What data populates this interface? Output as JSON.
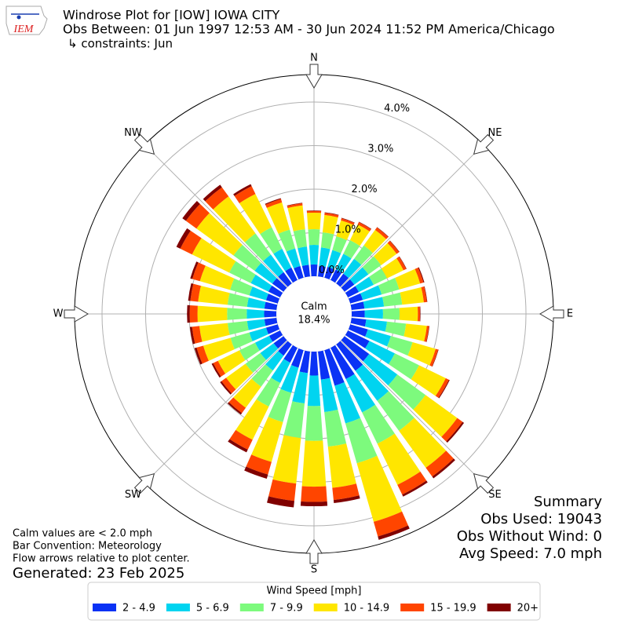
{
  "chart_data": {
    "type": "windrose",
    "title": "Windrose Plot for [IOW] IOWA CITY",
    "subtitle": "Obs Between: 01 Jun 1997 12:53 AM - 30 Jun 2024 11:52 PM America/Chicago",
    "constraints": "↳ constraints: Jun",
    "x": [
      0,
      10,
      20,
      30,
      40,
      50,
      60,
      70,
      80,
      90,
      100,
      110,
      120,
      130,
      140,
      150,
      160,
      170,
      180,
      190,
      200,
      210,
      220,
      230,
      240,
      250,
      260,
      270,
      280,
      290,
      300,
      310,
      320,
      330,
      340,
      350
    ],
    "direction_labels": [
      {
        "value": 0,
        "label": "N"
      },
      {
        "value": 45,
        "label": "NE"
      },
      {
        "value": 90,
        "label": "E"
      },
      {
        "value": 135,
        "label": "SE"
      },
      {
        "value": 180,
        "label": "S"
      },
      {
        "value": 225,
        "label": "SW"
      },
      {
        "value": 270,
        "label": "W"
      },
      {
        "value": 315,
        "label": "NW"
      }
    ],
    "ylim": [
      0,
      4.63
    ],
    "yticks": [
      {
        "value": 0,
        "label": "0.0%"
      },
      {
        "value": 1,
        "label": "1.0%"
      },
      {
        "value": 2,
        "label": "2.0%"
      },
      {
        "value": 3,
        "label": "3.0%"
      },
      {
        "value": 4,
        "label": "4.0%"
      }
    ],
    "grid": true,
    "calm_label": "Calm",
    "calm_value": 18.4,
    "calm_value_label": "18.4%",
    "legend_title": "Wind Speed [mph]",
    "series": [
      {
        "name": "2 - 4.9",
        "color": "#0a32f5",
        "values": [
          0.27,
          0.25,
          0.26,
          0.27,
          0.28,
          0.28,
          0.28,
          0.3,
          0.3,
          0.3,
          0.34,
          0.42,
          0.55,
          0.7,
          0.75,
          0.8,
          0.85,
          0.65,
          0.55,
          0.5,
          0.42,
          0.38,
          0.32,
          0.28,
          0.28,
          0.28,
          0.28,
          0.28,
          0.28,
          0.28,
          0.3,
          0.32,
          0.32,
          0.32,
          0.28,
          0.27
        ]
      },
      {
        "name": "5 - 6.9",
        "color": "#00d4f0",
        "values": [
          0.45,
          0.42,
          0.4,
          0.4,
          0.42,
          0.4,
          0.38,
          0.45,
          0.45,
          0.42,
          0.48,
          0.55,
          0.65,
          0.8,
          0.85,
          0.85,
          0.9,
          0.75,
          0.7,
          0.7,
          0.6,
          0.52,
          0.42,
          0.38,
          0.36,
          0.4,
          0.4,
          0.4,
          0.4,
          0.4,
          0.45,
          0.5,
          0.5,
          0.48,
          0.42,
          0.42
        ]
      },
      {
        "name": "7 - 9.9",
        "color": "#7dfa7d",
        "values": [
          0.36,
          0.35,
          0.33,
          0.35,
          0.38,
          0.36,
          0.34,
          0.42,
          0.42,
          0.38,
          0.44,
          0.52,
          0.62,
          0.8,
          0.85,
          0.8,
          0.95,
          0.8,
          0.8,
          0.8,
          0.7,
          0.6,
          0.46,
          0.42,
          0.4,
          0.45,
          0.45,
          0.45,
          0.45,
          0.46,
          0.55,
          0.6,
          0.6,
          0.55,
          0.45,
          0.4
        ]
      },
      {
        "name": "10 - 14.9",
        "color": "#ffe600",
        "values": [
          0.38,
          0.4,
          0.38,
          0.4,
          0.44,
          0.44,
          0.42,
          0.5,
          0.5,
          0.42,
          0.48,
          0.55,
          0.68,
          0.9,
          1.05,
          1.05,
          1.4,
          0.95,
          1.05,
          1.05,
          0.95,
          0.85,
          0.6,
          0.55,
          0.55,
          0.65,
          0.65,
          0.68,
          0.68,
          0.72,
          0.95,
          1.05,
          1.05,
          0.85,
          0.65,
          0.55
        ]
      },
      {
        "name": "15 - 19.9",
        "color": "#ff4500",
        "values": [
          0.04,
          0.05,
          0.05,
          0.06,
          0.07,
          0.07,
          0.07,
          0.08,
          0.07,
          0.05,
          0.05,
          0.06,
          0.08,
          0.15,
          0.25,
          0.25,
          0.35,
          0.28,
          0.35,
          0.4,
          0.3,
          0.25,
          0.15,
          0.13,
          0.12,
          0.16,
          0.17,
          0.18,
          0.18,
          0.18,
          0.3,
          0.3,
          0.26,
          0.2,
          0.08,
          0.05
        ]
      },
      {
        "name": "20+",
        "color": "#800000",
        "values": [
          0.01,
          0.01,
          0.01,
          0.01,
          0.01,
          0.01,
          0.01,
          0.02,
          0.01,
          0.01,
          0.01,
          0.01,
          0.02,
          0.04,
          0.05,
          0.05,
          0.08,
          0.07,
          0.1,
          0.15,
          0.1,
          0.07,
          0.04,
          0.04,
          0.04,
          0.05,
          0.05,
          0.06,
          0.05,
          0.05,
          0.1,
          0.1,
          0.07,
          0.05,
          0.02,
          0.01
        ]
      }
    ],
    "notes": [
      "Calm values are < 2.0 mph",
      "Bar Convention: Meteorology",
      "Flow arrows relative to plot center."
    ],
    "generated": "Generated: 23 Feb 2025",
    "summary": [
      "Summary",
      "Obs Used: 19043",
      "Obs Without Wind: 0",
      "Avg Speed: 7.0 mph"
    ]
  }
}
